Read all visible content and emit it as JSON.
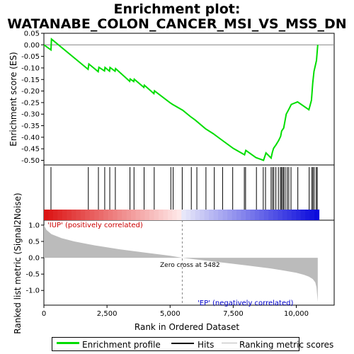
{
  "chart_data": {
    "type": "line",
    "title": "Enrichment plot:\nWATANABE_COLON_CANCER_MSI_VS_MSS_DN",
    "es_panel": {
      "ylabel": "Enrichment score (ES)",
      "ylim": [
        -0.52,
        0.05
      ],
      "yticks": [
        0.05,
        0.0,
        -0.05,
        -0.1,
        -0.15,
        -0.2,
        -0.25,
        -0.3,
        -0.35,
        -0.4,
        -0.45,
        -0.5
      ],
      "ytick_labels": [
        "0.05",
        "0.00",
        "-0.05",
        "-0.10",
        "-0.15",
        "-0.20",
        "-0.25",
        "-0.30",
        "-0.35",
        "-0.40",
        "-0.45",
        "-0.50"
      ],
      "series": [
        {
          "name": "Enrichment profile",
          "color": "#00dd00",
          "x": [
            0,
            280,
            300,
            1750,
            1780,
            2150,
            2180,
            2400,
            2420,
            2600,
            2620,
            2820,
            2840,
            3400,
            3420,
            3560,
            3580,
            3960,
            3980,
            4360,
            4380,
            5000,
            5100,
            5500,
            5800,
            6000,
            6400,
            6700,
            7000,
            7500,
            7950,
            8000,
            8400,
            8700,
            8800,
            9000,
            9050,
            9100,
            9200,
            9300,
            9380,
            9420,
            9500,
            9600,
            9700,
            9800,
            10050,
            10500,
            10600,
            10650,
            10700,
            10800,
            10850
          ],
          "y": [
            0.0,
            -0.022,
            0.025,
            -0.106,
            -0.083,
            -0.116,
            -0.097,
            -0.113,
            -0.098,
            -0.114,
            -0.098,
            -0.114,
            -0.103,
            -0.158,
            -0.148,
            -0.159,
            -0.149,
            -0.184,
            -0.175,
            -0.211,
            -0.199,
            -0.251,
            -0.258,
            -0.283,
            -0.31,
            -0.326,
            -0.363,
            -0.384,
            -0.408,
            -0.448,
            -0.476,
            -0.457,
            -0.488,
            -0.5,
            -0.468,
            -0.49,
            -0.465,
            -0.448,
            -0.432,
            -0.414,
            -0.396,
            -0.373,
            -0.36,
            -0.3,
            -0.28,
            -0.258,
            -0.247,
            -0.281,
            -0.24,
            -0.166,
            -0.115,
            -0.068,
            0.0
          ]
        }
      ]
    },
    "hits": [
      280,
      1760,
      2160,
      2410,
      2610,
      2830,
      3410,
      3570,
      3970,
      4370,
      5030,
      5120,
      5480,
      5840,
      6060,
      6420,
      6750,
      7080,
      7480,
      7940,
      7990,
      8420,
      8690,
      8780,
      9000,
      9060,
      9110,
      9190,
      9290,
      9370,
      9410,
      9460,
      9500,
      9560,
      9640,
      9700,
      9790,
      10060,
      10510,
      10620,
      10660,
      10710,
      10790,
      10830
    ],
    "metric_panel": {
      "ylabel": "Ranked list metric (Signal2Noise)",
      "ylim": [
        -1.45,
        1.15
      ],
      "yticks": [
        1.0,
        0.5,
        0.0,
        -0.5,
        -1.0
      ],
      "ytick_labels": [
        "1.0",
        "0.5",
        "0.0",
        "-0.5",
        "-1.0"
      ],
      "profile_x": [
        0,
        100,
        300,
        700,
        1200,
        2000,
        3000,
        4000,
        5000,
        5482,
        6000,
        7000,
        8000,
        9000,
        9500,
        10000,
        10300,
        10500,
        10650,
        10750,
        10800,
        10850
      ],
      "profile_y": [
        1.0,
        0.85,
        0.72,
        0.6,
        0.5,
        0.38,
        0.26,
        0.16,
        0.06,
        0.0,
        -0.05,
        -0.14,
        -0.23,
        -0.33,
        -0.39,
        -0.46,
        -0.52,
        -0.58,
        -0.65,
        -0.75,
        -0.9,
        -1.35
      ],
      "zero_cross_label": "Zero cross at 5482",
      "zero_cross": 5482,
      "pos_label": "'IUP' (positively correlated)",
      "neg_label": "'EP' (negatively correlated)"
    },
    "xlabel": "Rank in Ordered Dataset",
    "xlim": [
      0,
      11500
    ],
    "xticks": [
      0,
      2500,
      5000,
      7500,
      10000
    ],
    "xtick_labels": [
      "0",
      "2,500",
      "5,000",
      "7,500",
      "10,000"
    ],
    "n_genes": 10900,
    "legend": [
      "Enrichment profile",
      "Hits",
      "Ranking metric scores"
    ]
  },
  "colors": {
    "es_line": "#00dd00",
    "hits": "#000000",
    "metric_fill": "#bbbbbb",
    "pos_text": "#cc0000",
    "neg_text": "#0000cc",
    "zero_line": "#888888"
  }
}
